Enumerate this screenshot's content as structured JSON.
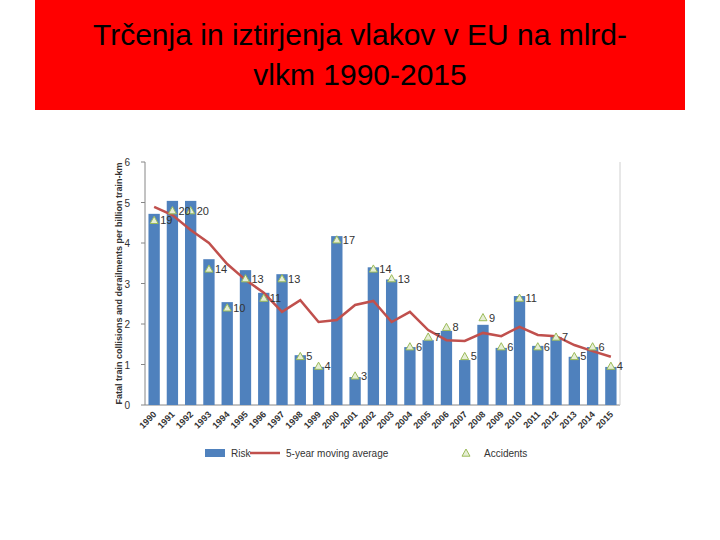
{
  "chart_data": {
    "type": "bar",
    "title": "Trčenja in iztirjenja vlakov v EU na mlrd-vlkm 1990-2015",
    "y_label": "Fatal train collisions and derailments per billion train-km",
    "categories": [
      "1990",
      "1991",
      "1992",
      "1993",
      "1994",
      "1995",
      "1996",
      "1997",
      "1998",
      "1999",
      "2000",
      "2001",
      "2002",
      "2003",
      "2004",
      "2005",
      "2006",
      "2007",
      "2008",
      "2009",
      "2010",
      "2011",
      "2012",
      "2013",
      "2014",
      "2015"
    ],
    "ylim": [
      0,
      6
    ],
    "yticks": [
      0,
      1,
      2,
      3,
      4,
      5,
      6
    ],
    "y2lim": [
      0,
      25
    ],
    "legend": "bottom",
    "grid": false,
    "series": [
      {
        "name": "Risk",
        "type": "bar",
        "color": "#4f81bd",
        "values": [
          4.72,
          5.04,
          5.04,
          3.6,
          2.54,
          3.33,
          2.77,
          3.23,
          1.23,
          0.94,
          4.17,
          0.69,
          3.4,
          3.1,
          1.43,
          1.6,
          1.83,
          1.11,
          1.98,
          1.41,
          2.69,
          1.46,
          1.68,
          1.19,
          1.43,
          0.94
        ]
      },
      {
        "name": "5-year moving average",
        "type": "line",
        "color": "#c0504d",
        "line_style": "solid",
        "values": [
          4.89,
          4.69,
          4.32,
          4.0,
          3.48,
          3.09,
          2.77,
          2.3,
          2.59,
          2.05,
          2.1,
          2.47,
          2.57,
          2.05,
          2.3,
          1.85,
          1.6,
          1.58,
          1.78,
          1.7,
          1.93,
          1.73,
          1.7,
          1.48,
          1.33,
          1.19
        ]
      },
      {
        "name": "Accidents",
        "type": "scatter",
        "color": "#9bbb59",
        "marker": "triangle",
        "axis": "y2",
        "data_labels": true,
        "values": [
          19,
          20,
          20,
          14,
          10,
          13,
          11,
          13,
          5,
          4,
          17,
          3,
          14,
          13,
          6,
          7,
          8,
          5,
          9,
          6,
          11,
          6,
          7,
          5,
          6,
          4
        ]
      }
    ]
  }
}
